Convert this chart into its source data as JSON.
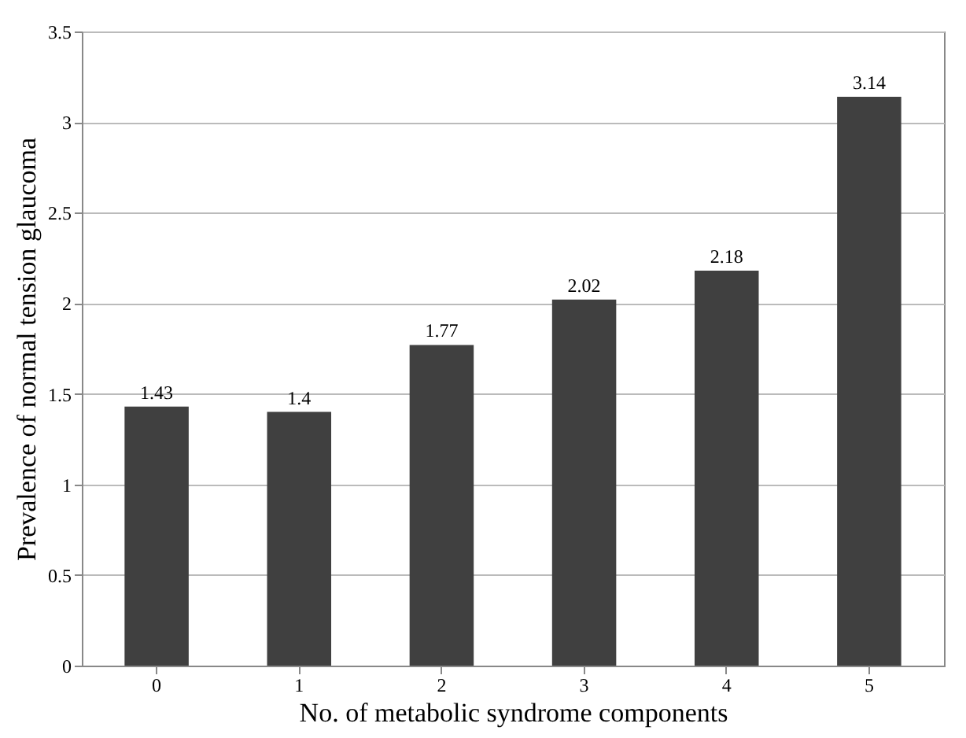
{
  "chart_data": {
    "type": "bar",
    "xlabel": "No. of metabolic syndrome components",
    "ylabel": "Prevalence of normal tension glaucoma",
    "categories": [
      "0",
      "1",
      "2",
      "3",
      "4",
      "5"
    ],
    "values": [
      1.43,
      1.4,
      1.77,
      2.02,
      2.18,
      3.14
    ],
    "color": "#404040",
    "ylim": [
      0,
      3.5
    ],
    "yticks": [
      0,
      0.5,
      1,
      1.5,
      2,
      2.5,
      3,
      3.5
    ],
    "grid": "y",
    "data_labels": true
  }
}
